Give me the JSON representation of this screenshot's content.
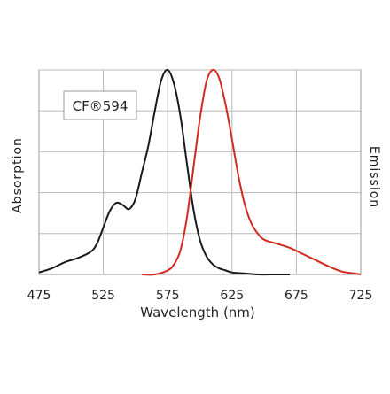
{
  "chart_data": {
    "type": "line",
    "title": "",
    "xlabel": "Wavelength (nm)",
    "ylabel_left": "Absorption",
    "ylabel_right": "Emission",
    "xlim": [
      475,
      725
    ],
    "ylim": [
      0,
      1.0
    ],
    "x_ticks": [
      475,
      525,
      575,
      625,
      675,
      725
    ],
    "x_tick_labels": [
      "475",
      "525",
      "575",
      "625",
      "675",
      "725"
    ],
    "y_gridlines": [
      0.2,
      0.4,
      0.6,
      0.8,
      1.0
    ],
    "grid": true,
    "legend_text": "CF®594",
    "legend_placement": "top-left",
    "series": [
      {
        "color": "#1a1a1a",
        "x": [
          475,
          485,
          495,
          505,
          515,
          520,
          525,
          530,
          535,
          540,
          545,
          550,
          555,
          560,
          565,
          570,
          575,
          580,
          585,
          590,
          595,
          600,
          605,
          610,
          615,
          620,
          625,
          635,
          645,
          660,
          670
        ],
        "y": [
          0.01,
          0.03,
          0.06,
          0.08,
          0.11,
          0.15,
          0.23,
          0.31,
          0.35,
          0.34,
          0.32,
          0.37,
          0.5,
          0.63,
          0.8,
          0.95,
          1.0,
          0.93,
          0.77,
          0.54,
          0.32,
          0.17,
          0.09,
          0.05,
          0.03,
          0.02,
          0.01,
          0.005,
          0.0,
          0.0,
          0.0
        ]
      },
      {
        "color": "#d32a20",
        "x": [
          555,
          565,
          575,
          580,
          585,
          590,
          595,
          600,
          605,
          610,
          615,
          620,
          625,
          630,
          635,
          640,
          645,
          650,
          660,
          670,
          680,
          690,
          700,
          710,
          720,
          725
        ],
        "y": [
          0.0,
          0.0,
          0.02,
          0.05,
          0.12,
          0.28,
          0.52,
          0.76,
          0.94,
          1.0,
          0.96,
          0.83,
          0.66,
          0.48,
          0.34,
          0.25,
          0.2,
          0.17,
          0.15,
          0.13,
          0.1,
          0.07,
          0.04,
          0.015,
          0.005,
          0.0
        ]
      }
    ]
  }
}
